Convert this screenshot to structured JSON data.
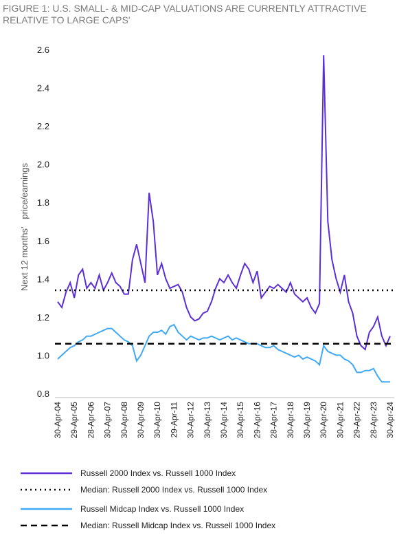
{
  "chart_data": {
    "type": "line",
    "title": "FIGURE 1: U.S. SMALL- & MID-CAP VALUATIONS ARE CURRENTLY ATTRACTIVE RELATIVE TO LARGE CAPS'",
    "y_label": "Next 12 months'   price/earnings",
    "categories": [
      "30-Apr-04",
      null,
      null,
      null,
      "29-Apr-05",
      null,
      null,
      null,
      "28-Apr-06",
      null,
      null,
      null,
      "30-Apr-07",
      null,
      null,
      null,
      "30-Apr-08",
      null,
      null,
      null,
      "30-Apr-09",
      null,
      null,
      null,
      "30-Apr-10",
      null,
      null,
      null,
      "29-Apr-11",
      null,
      null,
      null,
      "30-Apr-12",
      null,
      null,
      null,
      "30-Apr-13",
      null,
      null,
      null,
      "30-Apr-14",
      null,
      null,
      null,
      "30-Apr-15",
      null,
      null,
      null,
      "29-Apr-16",
      null,
      null,
      null,
      "28-Apr-17",
      null,
      null,
      null,
      "30-Apr-18",
      null,
      null,
      null,
      "30-Apr-19",
      null,
      null,
      null,
      "30-Apr-20",
      null,
      null,
      null,
      "30-Apr-21",
      null,
      null,
      null,
      "29-Apr-22",
      null,
      null,
      null,
      "28-Apr-23",
      null,
      null,
      null,
      "30-Apr-24"
    ],
    "series": [
      {
        "name": "Russell 2000 Index vs. Russell 1000 Index",
        "color": "#5b2fd6",
        "values": [
          1.28,
          1.25,
          1.33,
          1.38,
          1.3,
          1.42,
          1.45,
          1.35,
          1.38,
          1.35,
          1.42,
          1.34,
          1.38,
          1.43,
          1.38,
          1.36,
          1.32,
          1.32,
          1.5,
          1.58,
          1.48,
          1.38,
          1.85,
          1.7,
          1.42,
          1.48,
          1.4,
          1.35,
          1.36,
          1.37,
          1.33,
          1.25,
          1.2,
          1.18,
          1.19,
          1.22,
          1.23,
          1.28,
          1.35,
          1.4,
          1.38,
          1.42,
          1.38,
          1.35,
          1.42,
          1.48,
          1.45,
          1.38,
          1.44,
          1.3,
          1.33,
          1.36,
          1.35,
          1.37,
          1.35,
          1.33,
          1.38,
          1.32,
          1.3,
          1.28,
          1.3,
          1.25,
          1.22,
          1.27,
          2.57,
          1.7,
          1.5,
          1.4,
          1.33,
          1.42,
          1.28,
          1.22,
          1.1,
          1.05,
          1.03,
          1.12,
          1.15,
          1.2,
          1.1,
          1.05,
          1.1
        ]
      },
      {
        "name": "Median: Russell 2000 Index vs. Russell 1000 Index",
        "color": "#000000",
        "dash": "dotted",
        "value": 1.34
      },
      {
        "name": "Russell Midcap Index vs. Russell 1000 Index",
        "color": "#3fa9f5",
        "values": [
          0.98,
          1.0,
          1.02,
          1.04,
          1.05,
          1.07,
          1.08,
          1.1,
          1.1,
          1.11,
          1.12,
          1.13,
          1.14,
          1.14,
          1.12,
          1.1,
          1.08,
          1.07,
          1.05,
          0.97,
          1.0,
          1.05,
          1.1,
          1.12,
          1.12,
          1.13,
          1.11,
          1.15,
          1.16,
          1.12,
          1.1,
          1.08,
          1.1,
          1.09,
          1.08,
          1.09,
          1.09,
          1.1,
          1.09,
          1.08,
          1.09,
          1.1,
          1.08,
          1.09,
          1.08,
          1.07,
          1.06,
          1.06,
          1.06,
          1.05,
          1.04,
          1.04,
          1.05,
          1.03,
          1.02,
          1.01,
          1.0,
          0.99,
          1.0,
          0.98,
          0.99,
          0.98,
          0.97,
          0.95,
          1.05,
          1.02,
          1.01,
          1.0,
          1.0,
          0.98,
          0.97,
          0.95,
          0.91,
          0.91,
          0.92,
          0.92,
          0.93,
          0.89,
          0.86,
          0.86,
          0.86
        ]
      },
      {
        "name": "Median: Russell Midcap Index vs. Russell 1000 Index",
        "color": "#000000",
        "dash": "dashed",
        "value": 1.06
      }
    ],
    "ylim": [
      0.8,
      2.6
    ],
    "yticks": [
      {
        "value": 0.8,
        "label": "0.8"
      },
      {
        "value": 1,
        "label": "1.0"
      },
      1.2,
      1.4,
      1.6,
      1.8,
      {
        "value": 2,
        "label": "2.0"
      },
      2.2,
      2.4,
      2.6
    ],
    "grid": false
  }
}
